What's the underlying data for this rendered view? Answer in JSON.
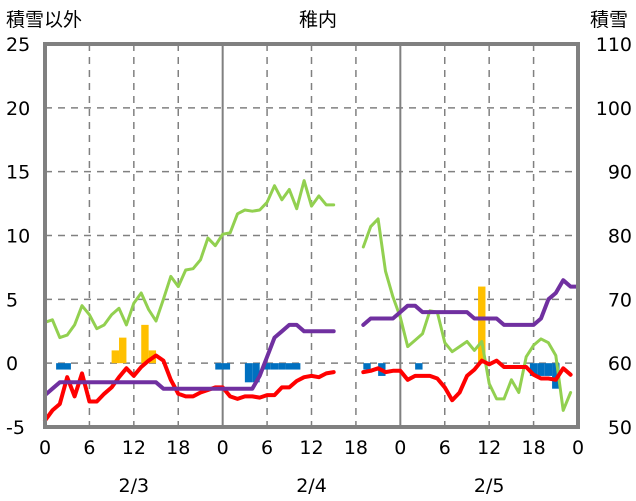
{
  "chart_data": {
    "type": "line",
    "title": "稚内",
    "left_axis_label": "積雪以外",
    "right_axis_label": "積雪",
    "left_ylim": [
      -5,
      25
    ],
    "left_yticks": [
      "25",
      "20",
      "15",
      "10",
      "5",
      "0",
      "-5"
    ],
    "right_ylim": [
      50,
      110
    ],
    "right_yticks": [
      "110",
      "100",
      "90",
      "80",
      "70",
      "60",
      "50"
    ],
    "xlim_hours": [
      0,
      72
    ],
    "x_hour_ticks": [
      "0",
      "6",
      "12",
      "18",
      "0",
      "6",
      "12",
      "18",
      "0",
      "6",
      "12",
      "18",
      "0"
    ],
    "date_labels": [
      "2/3",
      "2/4",
      "2/5"
    ],
    "colors": {
      "green": "#92d050",
      "red": "#ff0000",
      "purple": "#7030a0",
      "orange": "#ffc000",
      "blue": "#0070c0",
      "frame": "#808080",
      "grid": "#808080"
    },
    "series": [
      {
        "color": "green",
        "axis": "left",
        "segments": [
          [
            [
              0,
              3.2
            ],
            [
              1,
              3.4
            ],
            [
              2,
              2.0
            ],
            [
              3,
              2.2
            ],
            [
              4,
              3.0
            ],
            [
              5,
              4.5
            ],
            [
              6,
              3.8
            ],
            [
              7,
              2.7
            ],
            [
              8,
              3.0
            ],
            [
              9,
              3.8
            ],
            [
              10,
              4.3
            ],
            [
              11,
              3.0
            ],
            [
              12,
              4.7
            ],
            [
              13,
              5.5
            ],
            [
              14,
              4.2
            ],
            [
              15,
              3.3
            ],
            [
              16,
              5.0
            ],
            [
              17,
              6.8
            ],
            [
              18,
              6.0
            ],
            [
              19,
              7.3
            ],
            [
              20,
              7.4
            ],
            [
              21,
              8.1
            ],
            [
              22,
              9.8
            ],
            [
              23,
              9.2
            ],
            [
              24,
              10.1
            ],
            [
              25,
              10.2
            ],
            [
              26,
              11.7
            ],
            [
              27,
              12.0
            ],
            [
              28,
              11.9
            ],
            [
              29,
              12.0
            ],
            [
              30,
              12.6
            ],
            [
              31,
              13.9
            ],
            [
              32,
              12.8
            ],
            [
              33,
              13.6
            ],
            [
              34,
              12.1
            ],
            [
              35,
              14.3
            ],
            [
              36,
              12.3
            ],
            [
              37,
              13.1
            ],
            [
              38,
              12.4
            ],
            [
              39,
              12.4
            ]
          ],
          [
            [
              43,
              9.1
            ],
            [
              44,
              10.7
            ],
            [
              45,
              11.3
            ],
            [
              46,
              7.2
            ],
            [
              47,
              5.2
            ],
            [
              48,
              3.6
            ],
            [
              49,
              1.3
            ],
            [
              50,
              1.8
            ],
            [
              51,
              2.3
            ],
            [
              52,
              4.1
            ],
            [
              53,
              4.0
            ],
            [
              54,
              1.6
            ],
            [
              55,
              0.9
            ],
            [
              56,
              1.3
            ],
            [
              57,
              1.7
            ],
            [
              58,
              1.0
            ],
            [
              59,
              1.7
            ],
            [
              60,
              -1.6
            ],
            [
              61,
              -2.8
            ],
            [
              62,
              -2.8
            ],
            [
              63,
              -1.3
            ],
            [
              64,
              -2.3
            ],
            [
              65,
              0.5
            ],
            [
              66,
              1.4
            ],
            [
              67,
              1.9
            ],
            [
              68,
              1.6
            ],
            [
              69,
              0.6
            ],
            [
              70,
              -3.7
            ],
            [
              71,
              -2.3
            ]
          ]
        ]
      },
      {
        "color": "red",
        "axis": "left",
        "segments": [
          [
            [
              0,
              -4.5
            ],
            [
              1,
              -3.7
            ],
            [
              2,
              -3.2
            ],
            [
              3,
              -1.1
            ],
            [
              4,
              -2.6
            ],
            [
              5,
              -0.8
            ],
            [
              6,
              -3.0
            ],
            [
              7,
              -3.0
            ],
            [
              8,
              -2.4
            ],
            [
              9,
              -1.9
            ],
            [
              10,
              -1.1
            ],
            [
              11,
              -0.4
            ],
            [
              12,
              -1.0
            ],
            [
              13,
              -0.3
            ],
            [
              14,
              0.2
            ],
            [
              15,
              0.6
            ],
            [
              16,
              0.2
            ],
            [
              17,
              -1.3
            ],
            [
              18,
              -2.4
            ],
            [
              19,
              -2.6
            ],
            [
              20,
              -2.6
            ],
            [
              21,
              -2.3
            ],
            [
              22,
              -2.1
            ],
            [
              23,
              -1.9
            ],
            [
              24,
              -1.9
            ],
            [
              25,
              -2.6
            ],
            [
              26,
              -2.8
            ],
            [
              27,
              -2.6
            ],
            [
              28,
              -2.6
            ],
            [
              29,
              -2.7
            ],
            [
              30,
              -2.5
            ],
            [
              31,
              -2.5
            ],
            [
              32,
              -1.9
            ],
            [
              33,
              -1.9
            ],
            [
              34,
              -1.4
            ],
            [
              35,
              -1.1
            ],
            [
              36,
              -1.0
            ],
            [
              37,
              -1.1
            ],
            [
              38,
              -0.8
            ],
            [
              39,
              -0.7
            ]
          ],
          [
            [
              43,
              -0.7
            ],
            [
              44,
              -0.6
            ],
            [
              45,
              -0.4
            ],
            [
              46,
              -0.7
            ],
            [
              47,
              -0.6
            ],
            [
              48,
              -0.6
            ],
            [
              49,
              -1.3
            ],
            [
              50,
              -1.0
            ],
            [
              51,
              -1.0
            ],
            [
              52,
              -1.0
            ],
            [
              53,
              -1.2
            ],
            [
              54,
              -1.9
            ],
            [
              55,
              -2.9
            ],
            [
              56,
              -2.3
            ],
            [
              57,
              -1.0
            ],
            [
              58,
              -0.5
            ],
            [
              59,
              0.2
            ],
            [
              60,
              -0.1
            ],
            [
              61,
              0.2
            ],
            [
              62,
              -0.3
            ],
            [
              63,
              -0.3
            ],
            [
              64,
              -0.3
            ],
            [
              65,
              -0.3
            ],
            [
              66,
              -0.9
            ],
            [
              67,
              -1.2
            ],
            [
              68,
              -1.2
            ],
            [
              69,
              -1.3
            ],
            [
              70,
              -0.4
            ],
            [
              71,
              -0.9
            ]
          ]
        ]
      },
      {
        "color": "purple",
        "axis": "right",
        "segments": [
          [
            [
              0,
              55
            ],
            [
              1,
              56
            ],
            [
              2,
              57
            ],
            [
              3,
              57
            ],
            [
              4,
              57
            ],
            [
              5,
              57
            ],
            [
              6,
              57
            ],
            [
              7,
              57
            ],
            [
              8,
              57
            ],
            [
              9,
              57
            ],
            [
              10,
              57
            ],
            [
              11,
              57
            ],
            [
              12,
              57
            ],
            [
              13,
              57
            ],
            [
              14,
              57
            ],
            [
              15,
              57
            ],
            [
              16,
              56
            ],
            [
              17,
              56
            ],
            [
              18,
              56
            ],
            [
              19,
              56
            ],
            [
              20,
              56
            ],
            [
              21,
              56
            ],
            [
              22,
              56
            ],
            [
              23,
              56
            ],
            [
              24,
              56
            ],
            [
              25,
              56
            ],
            [
              26,
              56
            ],
            [
              27,
              56
            ],
            [
              28,
              56
            ],
            [
              29,
              58
            ],
            [
              30,
              61
            ],
            [
              31,
              64
            ],
            [
              32,
              65
            ],
            [
              33,
              66
            ],
            [
              34,
              66
            ],
            [
              35,
              65
            ],
            [
              36,
              65
            ],
            [
              37,
              65
            ],
            [
              38,
              65
            ],
            [
              39,
              65
            ]
          ],
          [
            [
              43,
              66
            ],
            [
              44,
              67
            ],
            [
              45,
              67
            ],
            [
              46,
              67
            ],
            [
              47,
              67
            ],
            [
              48,
              68
            ],
            [
              49,
              69
            ],
            [
              50,
              69
            ],
            [
              51,
              68
            ],
            [
              52,
              68
            ],
            [
              53,
              68
            ],
            [
              54,
              68
            ],
            [
              55,
              68
            ],
            [
              56,
              68
            ],
            [
              57,
              68
            ],
            [
              58,
              67
            ],
            [
              59,
              67
            ],
            [
              60,
              67
            ],
            [
              61,
              67
            ],
            [
              62,
              66
            ],
            [
              63,
              66
            ],
            [
              64,
              66
            ],
            [
              65,
              66
            ],
            [
              66,
              66
            ],
            [
              67,
              67
            ],
            [
              68,
              70
            ],
            [
              69,
              71
            ],
            [
              70,
              73
            ],
            [
              71,
              72
            ],
            [
              72,
              72
            ]
          ]
        ]
      }
    ],
    "bars_orange": {
      "axis": "left",
      "points": [
        [
          9.5,
          1.0
        ],
        [
          10.5,
          2.0
        ],
        [
          13.5,
          3.0
        ],
        [
          14.5,
          1.0
        ],
        [
          59,
          6.0
        ]
      ]
    },
    "bars_blue": {
      "axis": "left",
      "points": [
        [
          2,
          -0.5
        ],
        [
          3,
          -0.5
        ],
        [
          23.5,
          -0.5
        ],
        [
          24.5,
          -0.5
        ],
        [
          27.5,
          -1.5
        ],
        [
          28.5,
          -1.5
        ],
        [
          30,
          -0.5
        ],
        [
          31,
          -0.5
        ],
        [
          32,
          -0.5
        ],
        [
          33,
          -0.5
        ],
        [
          34,
          -0.5
        ],
        [
          43.5,
          -0.5
        ],
        [
          45.5,
          -1.0
        ],
        [
          50.5,
          -0.5
        ],
        [
          66,
          -1.0
        ],
        [
          67,
          -1.0
        ],
        [
          68,
          -1.0
        ],
        [
          69,
          -2.0
        ]
      ]
    }
  }
}
